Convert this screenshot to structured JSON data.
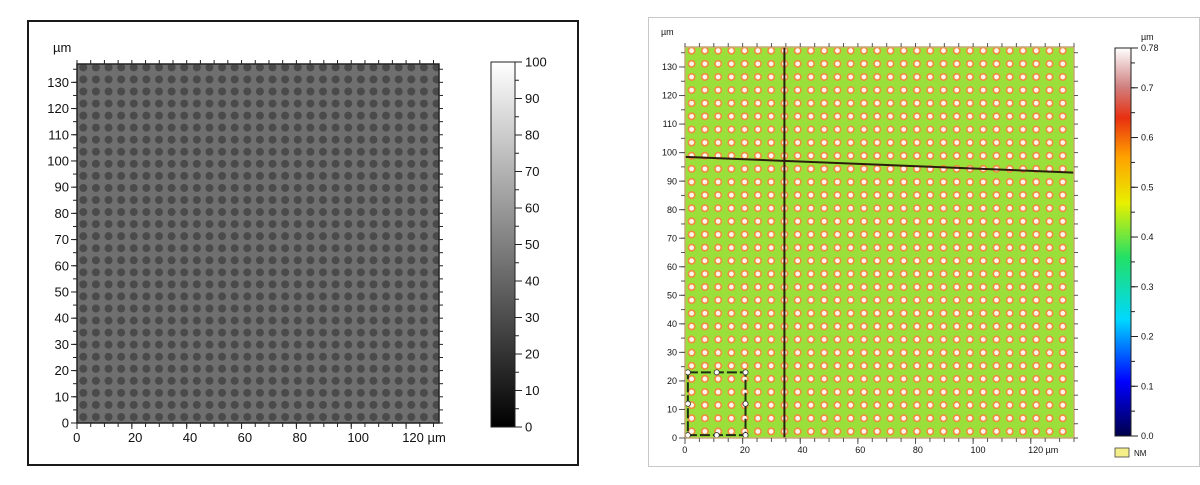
{
  "chart_data": [
    {
      "type": "heatmap",
      "title": "",
      "xlabel": "µm",
      "ylabel": "µm",
      "xlim": [
        0,
        132
      ],
      "ylim": [
        0,
        137
      ],
      "x_ticks": [
        0,
        20,
        40,
        60,
        80,
        100,
        120
      ],
      "x_tick_labels": [
        "0",
        "20",
        "40",
        "60",
        "80",
        "100",
        "120 µm"
      ],
      "y_ticks": [
        0,
        10,
        20,
        30,
        40,
        50,
        60,
        70,
        80,
        90,
        100,
        110,
        120,
        130
      ],
      "y_tick_labels": [
        "0",
        "10",
        "20",
        "30",
        "40",
        "50",
        "60",
        "70",
        "80",
        "90",
        "100",
        "110",
        "120",
        "130"
      ],
      "colorbar": {
        "range": [
          0,
          100
        ],
        "ticks": [
          0,
          10,
          20,
          30,
          40,
          50,
          60,
          70,
          80,
          90,
          100
        ],
        "tick_labels": [
          "0",
          "10",
          "20",
          "30",
          "40",
          "50",
          "60",
          "70",
          "80",
          "90",
          "100"
        ],
        "colormap": "grayscale"
      },
      "pattern": "square array of circular dots",
      "pitch_um": 4.6,
      "background_color": "#6f6f6f",
      "dot_color": "#4a4a4a"
    },
    {
      "type": "heatmap",
      "title": "",
      "xlabel": "µm",
      "ylabel": "µm",
      "xlim": [
        0,
        135
      ],
      "ylim": [
        0,
        137
      ],
      "x_ticks": [
        0,
        20,
        40,
        60,
        80,
        100,
        120
      ],
      "x_tick_labels": [
        "0",
        "20",
        "40",
        "60",
        "80",
        "100",
        "120 µm"
      ],
      "y_ticks": [
        0,
        10,
        20,
        30,
        40,
        50,
        60,
        70,
        80,
        90,
        100,
        110,
        120,
        130
      ],
      "y_tick_labels": [
        "0",
        "10",
        "20",
        "30",
        "40",
        "50",
        "60",
        "70",
        "80",
        "90",
        "100",
        "110",
        "120",
        "130"
      ],
      "colorbar": {
        "unit": "µm",
        "range": [
          0,
          0.78
        ],
        "ticks": [
          0,
          0.1,
          0.2,
          0.3,
          0.4,
          0.5,
          0.6,
          0.7,
          0.78
        ],
        "tick_labels": [
          "0.0",
          "0.1",
          "0.2",
          "0.3",
          "0.4",
          "0.5",
          "0.6",
          "0.7",
          "0.78"
        ],
        "colormap": "rainbow"
      },
      "pattern": "square array of ring-shaped dots",
      "pitch_um": 4.6,
      "background_color": "#9be03a",
      "ring_color": "#f08a3c",
      "lines": [
        {
          "orientation": "vertical",
          "from": [
            34.5,
            0
          ],
          "to": [
            34.5,
            137
          ]
        },
        {
          "orientation": "horizontal",
          "from": [
            0,
            98.5
          ],
          "to": [
            135,
            93
          ]
        }
      ],
      "selection_box": {
        "x": [
          1,
          21
        ],
        "y": [
          1,
          23
        ]
      },
      "legend": {
        "label": "NM",
        "color": "#f5ef8a"
      }
    }
  ]
}
